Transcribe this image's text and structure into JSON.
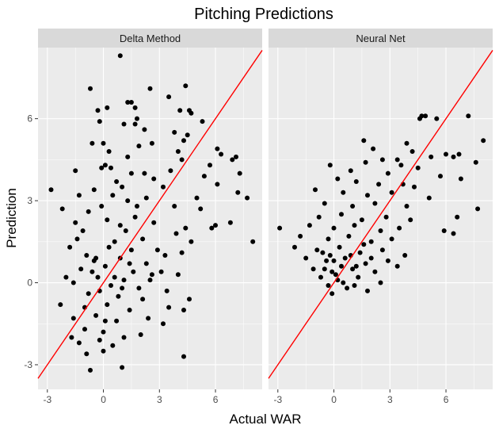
{
  "chart_data": {
    "type": "scatter",
    "title": "Pitching Predictions",
    "xlabel": "Actual WAR",
    "ylabel": "Prediction",
    "xlim": [
      -3.5,
      8.5
    ],
    "ylim": [
      -3.9,
      8.6
    ],
    "x_ticks": [
      -3,
      0,
      3,
      6
    ],
    "y_ticks": [
      -3,
      0,
      3,
      6
    ],
    "grid": true,
    "reference_line": {
      "slope": 1,
      "intercept": 0,
      "color": "#ff0000"
    },
    "colors": {
      "panel_background": "#ebebeb",
      "strip_background": "#d9d9d9",
      "grid_major": "#ffffff",
      "points": "#000000",
      "reference_line": "#ff0000"
    },
    "facets": [
      {
        "label": "Delta Method",
        "points": [
          [
            0.9,
            8.3
          ],
          [
            -0.7,
            7.1
          ],
          [
            2.5,
            7.1
          ],
          [
            4.4,
            7.2
          ],
          [
            3.5,
            6.8
          ],
          [
            1.3,
            6.6
          ],
          [
            1.5,
            6.6
          ],
          [
            0.2,
            6.4
          ],
          [
            -0.3,
            6.3
          ],
          [
            1.7,
            6.4
          ],
          [
            4.1,
            6.3
          ],
          [
            4.6,
            6.3
          ],
          [
            4.7,
            6.2
          ],
          [
            -0.2,
            5.9
          ],
          [
            1.8,
            6.0
          ],
          [
            1.1,
            5.8
          ],
          [
            1.7,
            5.8
          ],
          [
            5.3,
            5.9
          ],
          [
            2.2,
            5.6
          ],
          [
            3.8,
            5.5
          ],
          [
            -0.6,
            5.1
          ],
          [
            4.5,
            5.4
          ],
          [
            0.0,
            5.1
          ],
          [
            4.3,
            5.2
          ],
          [
            1.9,
            5.0
          ],
          [
            0.3,
            4.8
          ],
          [
            4.0,
            4.8
          ],
          [
            2.6,
            5.1
          ],
          [
            1.3,
            4.6
          ],
          [
            4.2,
            4.5
          ],
          [
            6.1,
            4.9
          ],
          [
            6.3,
            4.7
          ],
          [
            7.1,
            4.6
          ],
          [
            6.9,
            4.5
          ],
          [
            5.7,
            4.3
          ],
          [
            -1.5,
            4.1
          ],
          [
            -0.1,
            4.2
          ],
          [
            0.1,
            4.3
          ],
          [
            0.4,
            4.2
          ],
          [
            1.5,
            4.0
          ],
          [
            2.2,
            4.0
          ],
          [
            3.6,
            4.1
          ],
          [
            7.3,
            4.0
          ],
          [
            5.4,
            3.9
          ],
          [
            2.7,
            3.8
          ],
          [
            -0.5,
            3.4
          ],
          [
            1.0,
            3.5
          ],
          [
            3.2,
            3.5
          ],
          [
            6.1,
            3.6
          ],
          [
            7.2,
            3.3
          ],
          [
            -2.8,
            3.4
          ],
          [
            -1.3,
            3.2
          ],
          [
            0.5,
            3.2
          ],
          [
            2.3,
            3.1
          ],
          [
            5.0,
            3.1
          ],
          [
            7.7,
            3.1
          ],
          [
            -2.2,
            2.7
          ],
          [
            -0.8,
            2.6
          ],
          [
            1.8,
            2.8
          ],
          [
            3.8,
            2.8
          ],
          [
            5.2,
            2.7
          ],
          [
            -1.5,
            2.2
          ],
          [
            0.2,
            2.3
          ],
          [
            2.7,
            2.2
          ],
          [
            6.8,
            2.2
          ],
          [
            5.8,
            2.0
          ],
          [
            6.0,
            2.1
          ],
          [
            4.4,
            2.0
          ],
          [
            3.9,
            1.8
          ],
          [
            -1.1,
            1.9
          ],
          [
            1.2,
            1.9
          ],
          [
            2.1,
            1.6
          ],
          [
            8.0,
            1.5
          ],
          [
            4.7,
            1.5
          ],
          [
            -1.8,
            1.3
          ],
          [
            0.6,
            1.5
          ],
          [
            1.5,
            1.2
          ],
          [
            2.9,
            1.2
          ],
          [
            -0.9,
            1.0
          ],
          [
            3.3,
            1.0
          ],
          [
            4.2,
            1.1
          ],
          [
            -0.5,
            0.8
          ],
          [
            0.9,
            0.9
          ],
          [
            2.3,
            0.7
          ],
          [
            -1.2,
            0.5
          ],
          [
            0.1,
            0.6
          ],
          [
            1.6,
            0.4
          ],
          [
            3.1,
            0.4
          ],
          [
            4.0,
            0.3
          ],
          [
            -2.0,
            0.2
          ],
          [
            -0.3,
            0.2
          ],
          [
            1.1,
            0.1
          ],
          [
            2.5,
            0.1
          ],
          [
            -1.6,
            0.0
          ],
          [
            0.4,
            -0.1
          ],
          [
            1.9,
            -0.2
          ],
          [
            3.4,
            -0.3
          ],
          [
            -0.8,
            -0.4
          ],
          [
            0.8,
            -0.5
          ],
          [
            2.1,
            -0.6
          ],
          [
            -2.3,
            -0.8
          ],
          [
            -1.0,
            -0.9
          ],
          [
            0.2,
            -0.8
          ],
          [
            1.4,
            -1.0
          ],
          [
            3.5,
            -0.9
          ],
          [
            4.6,
            -0.6
          ],
          [
            4.3,
            -1.0
          ],
          [
            -1.6,
            -1.3
          ],
          [
            -0.4,
            -1.2
          ],
          [
            0.7,
            -1.4
          ],
          [
            2.4,
            -1.3
          ],
          [
            3.2,
            -1.5
          ],
          [
            -1.0,
            -1.7
          ],
          [
            0.0,
            -1.8
          ],
          [
            1.1,
            -2.0
          ],
          [
            2.0,
            -1.9
          ],
          [
            -1.3,
            -2.2
          ],
          [
            -0.2,
            -2.1
          ],
          [
            0.5,
            -2.3
          ],
          [
            -0.9,
            -2.6
          ],
          [
            0.0,
            -2.5
          ],
          [
            4.3,
            -2.7
          ],
          [
            -0.7,
            -3.2
          ],
          [
            1.0,
            -3.1
          ],
          [
            -1.7,
            -2.0
          ],
          [
            -0.6,
            0.4
          ],
          [
            0.3,
            1.3
          ],
          [
            1.4,
            0.7
          ],
          [
            -0.2,
            -0.3
          ],
          [
            0.6,
            0.2
          ],
          [
            1.0,
            -0.2
          ],
          [
            -0.4,
            0.9
          ],
          [
            0.9,
            2.1
          ],
          [
            -1.4,
            1.6
          ],
          [
            0.1,
            -1.4
          ],
          [
            2.6,
            0.3
          ],
          [
            1.7,
            2.4
          ],
          [
            -0.1,
            2.8
          ],
          [
            0.7,
            3.7
          ],
          [
            1.3,
            3.0
          ]
        ]
      },
      {
        "label": "Neural Net",
        "points": [
          [
            4.7,
            6.1
          ],
          [
            4.6,
            6.0
          ],
          [
            4.9,
            6.1
          ],
          [
            7.2,
            6.1
          ],
          [
            5.5,
            6.0
          ],
          [
            8.0,
            5.2
          ],
          [
            1.6,
            5.2
          ],
          [
            3.9,
            5.1
          ],
          [
            2.1,
            4.9
          ],
          [
            4.2,
            4.8
          ],
          [
            6.0,
            4.7
          ],
          [
            6.4,
            4.6
          ],
          [
            6.7,
            4.7
          ],
          [
            7.6,
            4.4
          ],
          [
            5.2,
            4.6
          ],
          [
            3.4,
            4.5
          ],
          [
            2.6,
            4.5
          ],
          [
            1.7,
            4.4
          ],
          [
            -0.2,
            4.3
          ],
          [
            0.9,
            4.1
          ],
          [
            2.9,
            4.0
          ],
          [
            4.5,
            4.2
          ],
          [
            3.6,
            4.3
          ],
          [
            5.7,
            3.9
          ],
          [
            6.8,
            3.8
          ],
          [
            0.2,
            3.8
          ],
          [
            1.2,
            3.7
          ],
          [
            2.4,
            3.6
          ],
          [
            3.7,
            3.6
          ],
          [
            4.3,
            3.5
          ],
          [
            -1.0,
            3.4
          ],
          [
            0.5,
            3.3
          ],
          [
            1.8,
            3.2
          ],
          [
            3.1,
            3.3
          ],
          [
            5.1,
            3.1
          ],
          [
            -0.5,
            2.9
          ],
          [
            1.0,
            2.8
          ],
          [
            2.2,
            2.9
          ],
          [
            3.9,
            2.8
          ],
          [
            7.7,
            2.7
          ],
          [
            -0.8,
            2.4
          ],
          [
            0.4,
            2.5
          ],
          [
            1.5,
            2.3
          ],
          [
            2.8,
            2.4
          ],
          [
            4.1,
            2.3
          ],
          [
            6.6,
            2.4
          ],
          [
            -1.3,
            2.1
          ],
          [
            0.0,
            2.0
          ],
          [
            1.1,
            2.1
          ],
          [
            2.5,
            1.9
          ],
          [
            3.5,
            2.0
          ],
          [
            6.4,
            1.8
          ],
          [
            5.9,
            1.9
          ],
          [
            -1.8,
            1.7
          ],
          [
            -0.3,
            1.6
          ],
          [
            0.8,
            1.7
          ],
          [
            2.0,
            1.5
          ],
          [
            3.1,
            1.6
          ],
          [
            -2.9,
            2.0
          ],
          [
            -2.1,
            1.3
          ],
          [
            -0.9,
            1.2
          ],
          [
            0.3,
            1.3
          ],
          [
            1.4,
            1.1
          ],
          [
            2.6,
            1.2
          ],
          [
            3.8,
            1.0
          ],
          [
            -1.5,
            0.9
          ],
          [
            -0.4,
            0.8
          ],
          [
            0.6,
            0.9
          ],
          [
            1.7,
            0.7
          ],
          [
            2.9,
            0.8
          ],
          [
            -1.1,
            0.5
          ],
          [
            -0.1,
            0.4
          ],
          [
            1.0,
            0.5
          ],
          [
            2.2,
            0.4
          ],
          [
            3.4,
            0.6
          ],
          [
            -0.7,
            0.2
          ],
          [
            0.2,
            0.1
          ],
          [
            1.3,
            0.2
          ],
          [
            2.5,
            0.0
          ],
          [
            -0.3,
            -0.1
          ],
          [
            0.7,
            -0.2
          ],
          [
            1.8,
            -0.3
          ],
          [
            -0.1,
            -0.4
          ],
          [
            0.1,
            0.3
          ],
          [
            0.4,
            0.6
          ],
          [
            -0.5,
            0.5
          ],
          [
            0.9,
            1.0
          ],
          [
            1.6,
            1.4
          ],
          [
            -0.2,
            1.0
          ],
          [
            0.5,
            0.0
          ],
          [
            1.1,
            -0.1
          ],
          [
            2.0,
            0.9
          ],
          [
            0.0,
            0.8
          ],
          [
            -0.6,
            1.1
          ],
          [
            1.2,
            0.6
          ]
        ]
      }
    ]
  }
}
